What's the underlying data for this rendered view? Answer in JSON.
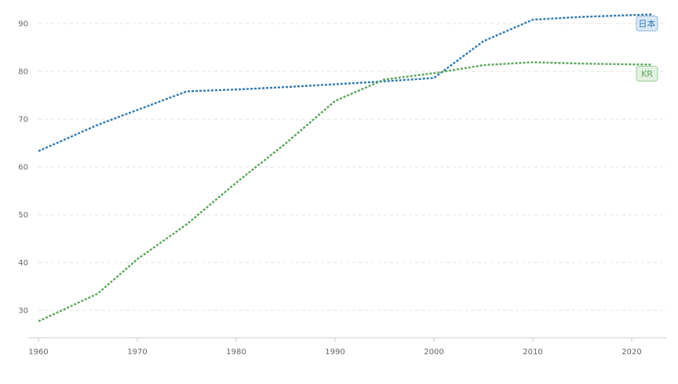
{
  "chart_data": {
    "type": "line",
    "title": "",
    "xlabel": "",
    "ylabel": "",
    "xlim": [
      1960,
      2022
    ],
    "ylim": [
      24,
      93
    ],
    "x_ticks": [
      1960,
      1970,
      1980,
      1990,
      2000,
      2010,
      2020
    ],
    "y_ticks": [
      30,
      40,
      50,
      60,
      70,
      80,
      90
    ],
    "grid": "horizontal dashed",
    "legend": "labels at right end of lines",
    "series": [
      {
        "name": "日本",
        "color": "#2f7ab6",
        "tag_bg": "#dbe8f5",
        "tag_border": "#8fb4d9",
        "x": [
          1960,
          1966,
          1975,
          1980,
          1985,
          1990,
          1995,
          2000,
          2005,
          2010,
          2015,
          2022
        ],
        "y": [
          63.3,
          68.8,
          75.8,
          76.2,
          76.7,
          77.3,
          77.9,
          78.6,
          86.3,
          90.8,
          91.4,
          91.9
        ]
      },
      {
        "name": "KR",
        "color": "#5ba55b",
        "tag_bg": "#e2f0e0",
        "tag_border": "#9fcf9a",
        "x": [
          1960,
          1966,
          1970,
          1975,
          1980,
          1985,
          1990,
          1995,
          2000,
          2005,
          2010,
          2015,
          2022
        ],
        "y": [
          27.7,
          33.5,
          40.7,
          48.0,
          56.7,
          64.9,
          73.8,
          78.3,
          79.6,
          81.3,
          81.9,
          81.6,
          81.4
        ]
      }
    ]
  }
}
